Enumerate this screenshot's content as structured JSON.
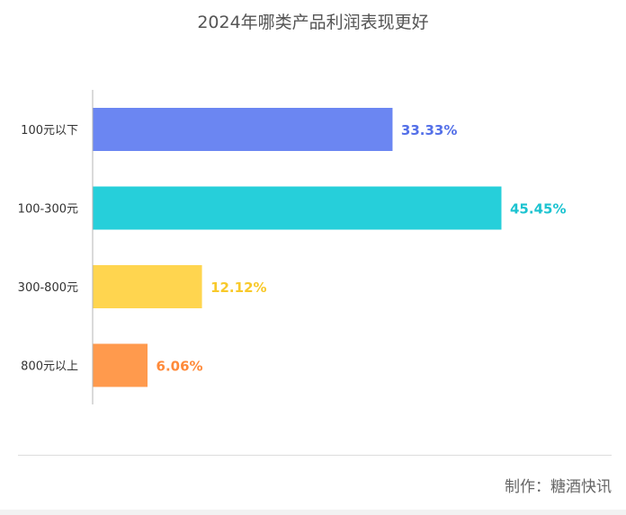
{
  "chart_data": {
    "type": "bar",
    "orientation": "horizontal",
    "title": "2024年哪类产品利润表现更好",
    "categories": [
      "100元以下",
      "100-300元",
      "300-800元",
      "800元以上"
    ],
    "values": [
      33.33,
      45.45,
      12.12,
      6.06
    ],
    "value_labels": [
      "33.33%",
      "45.45%",
      "12.12%",
      "6.06%"
    ],
    "colors": [
      "#6b86f2",
      "#26cfda",
      "#ffd54f",
      "#ff9a4d"
    ],
    "label_colors": [
      "#5470e8",
      "#1cc3d0",
      "#f8c92a",
      "#ff8a3a"
    ],
    "xlim": [
      0,
      50
    ],
    "grid": false,
    "legend": "none"
  },
  "footer": {
    "credit": "制作：糖酒快讯"
  }
}
